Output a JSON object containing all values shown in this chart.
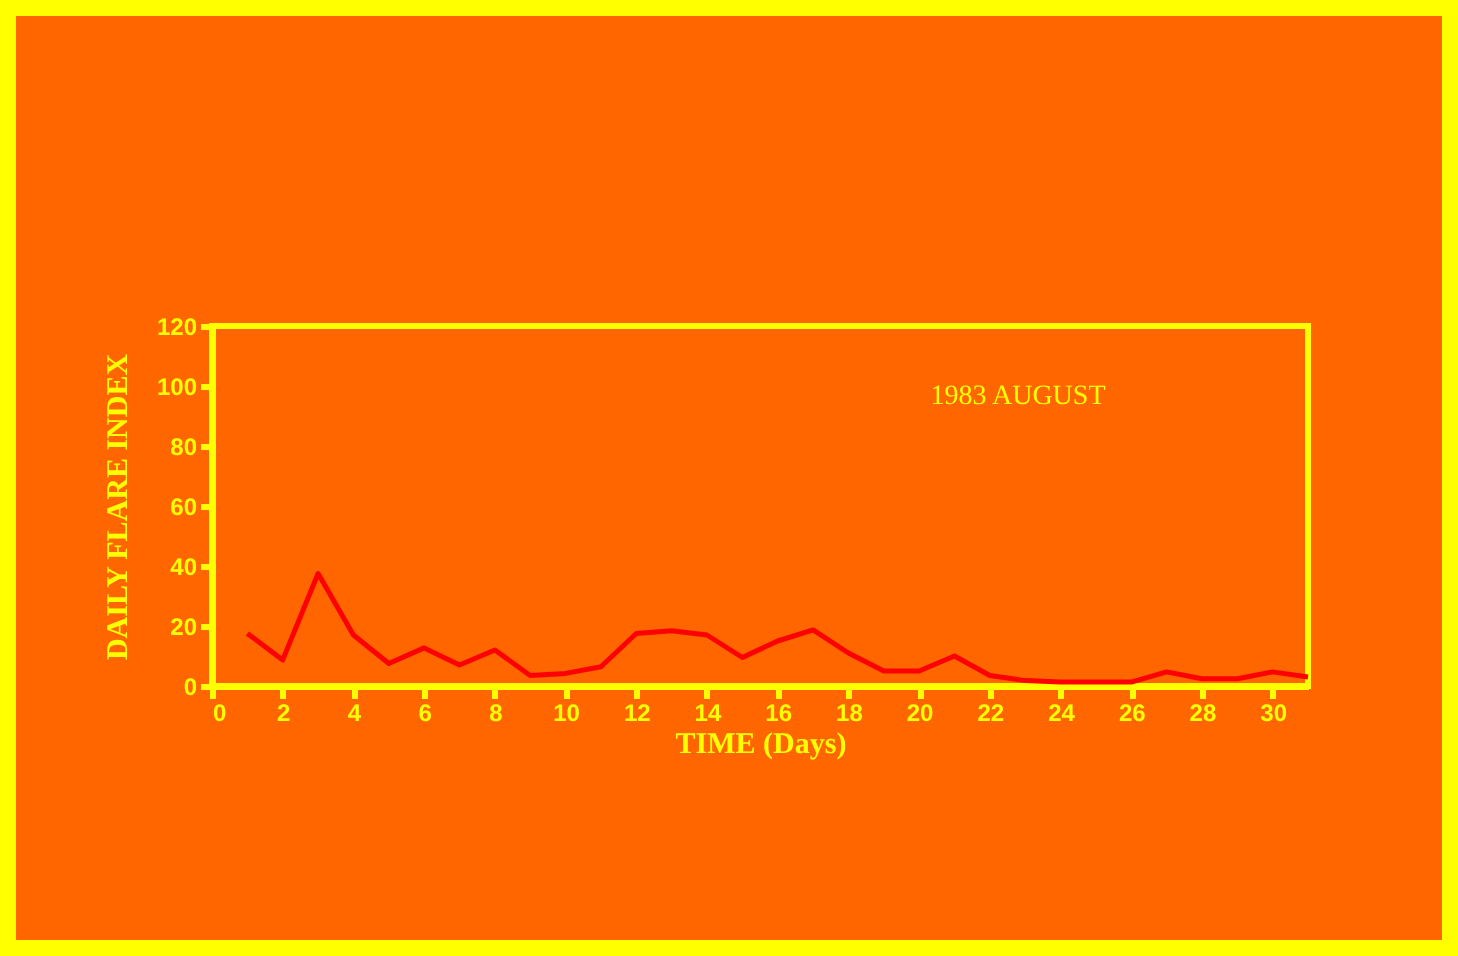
{
  "chart_data": {
    "type": "line",
    "xlabel": "TIME (Days)",
    "ylabel": "DAILY FLARE INDEX",
    "annotations": [
      "1983  AUGUST"
    ],
    "x": [
      1,
      2,
      3,
      4,
      5,
      6,
      7,
      8,
      9,
      10,
      11,
      12,
      13,
      14,
      15,
      16,
      17,
      18,
      19,
      20,
      21,
      22,
      23,
      24,
      25,
      26,
      27,
      28,
      29,
      30,
      31
    ],
    "series": [
      {
        "color": "#ff0000",
        "values": [
          17.5,
          8.7,
          37.5,
          17,
          7.5,
          12.7,
          7,
          12,
          3.5,
          4.2,
          6.4,
          17.5,
          18.4,
          17,
          9.5,
          15,
          18.7,
          11,
          5,
          5,
          10,
          3.5,
          1.8,
          1.3,
          1.3,
          1.3,
          4.7,
          2.4,
          2.4,
          4.7,
          3
        ]
      }
    ],
    "xlim": [
      0,
      31
    ],
    "xticks": [
      0,
      2,
      4,
      6,
      8,
      10,
      12,
      14,
      16,
      18,
      20,
      22,
      24,
      26,
      28,
      30
    ],
    "ylim": [
      0,
      120
    ],
    "yticks": [
      0,
      20,
      40,
      60,
      80,
      100,
      120
    ],
    "grid": false,
    "legend": false,
    "marker": "none",
    "line_style": "solid"
  }
}
